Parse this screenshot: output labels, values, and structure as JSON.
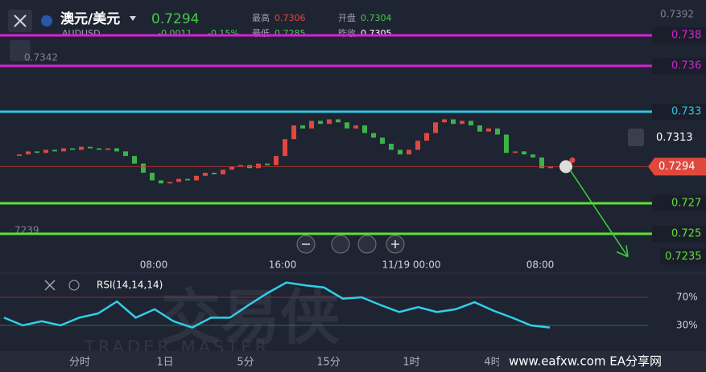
{
  "header": {
    "pair": "澳元/美元",
    "symbol": "AUDUSD",
    "price": "0.7294",
    "change": "-0.0011",
    "change_pct": "-0.15%",
    "stats": [
      {
        "label": "最高",
        "value": "0.7306"
      },
      {
        "label": "开盘",
        "value": "0.7304"
      },
      {
        "label": "最低",
        "value": "0.7285"
      },
      {
        "label": "昨收",
        "value": "0.7305"
      }
    ]
  },
  "ghost_labels": [
    "0.7392",
    "0.7342",
    "7239"
  ],
  "levels": [
    {
      "value": 0.738,
      "color": "#d81fd8"
    },
    {
      "value": 0.736,
      "color": "#d81fd8"
    },
    {
      "value": 0.733,
      "color": "#2fc6e0"
    },
    {
      "value": 0.727,
      "color": "#5fe033"
    },
    {
      "value": 0.725,
      "color": "#5fe033"
    }
  ],
  "current_price": 0.7294,
  "alert_price": 0.7313,
  "target_price": 0.7235,
  "candles": {
    "open": 0.7301,
    "closes": [
      0.7302,
      0.7304,
      0.7303,
      0.7305,
      0.7304,
      0.7306,
      0.7305,
      0.7307,
      0.7306,
      0.7305,
      0.7306,
      0.7304,
      0.7301,
      0.7296,
      0.729,
      0.7285,
      0.7283,
      0.7284,
      0.7286,
      0.7285,
      0.7288,
      0.729,
      0.7289,
      0.7292,
      0.7294,
      0.7295,
      0.7293,
      0.7296,
      0.7295,
      0.7301,
      0.7312,
      0.7321,
      0.7319,
      0.7324,
      0.7322,
      0.7325,
      0.7323,
      0.7319,
      0.7321,
      0.7316,
      0.7313,
      0.7309,
      0.7305,
      0.7302,
      0.7305,
      0.7311,
      0.7316,
      0.7323,
      0.7325,
      0.7322,
      0.7324,
      0.7321,
      0.7317,
      0.7319,
      0.7315,
      0.7303,
      0.7304,
      0.7302,
      0.73,
      0.7293,
      0.7294
    ]
  },
  "time_labels": [
    "08:00",
    "16:00",
    "11/19 00:00",
    "08:00"
  ],
  "rsi": {
    "label": "RSI(14,14,14)",
    "values": [
      41,
      30,
      36,
      30,
      41,
      47,
      64,
      41,
      53,
      36,
      27,
      41,
      41,
      59,
      76,
      91,
      87,
      84,
      68,
      70,
      59,
      49,
      56,
      49,
      53,
      63,
      51,
      41,
      30,
      27
    ],
    "ticks": [
      {
        "value": 70,
        "label": "70%"
      },
      {
        "value": 30,
        "label": "30%"
      }
    ]
  },
  "tabs": [
    "分时",
    "1日",
    "5分",
    "15分",
    "1时",
    "4时"
  ],
  "watermark": {
    "cn": "交易侠",
    "en": "TRADER MASTER"
  },
  "site": "www.eafxw.com  EA分享网"
}
